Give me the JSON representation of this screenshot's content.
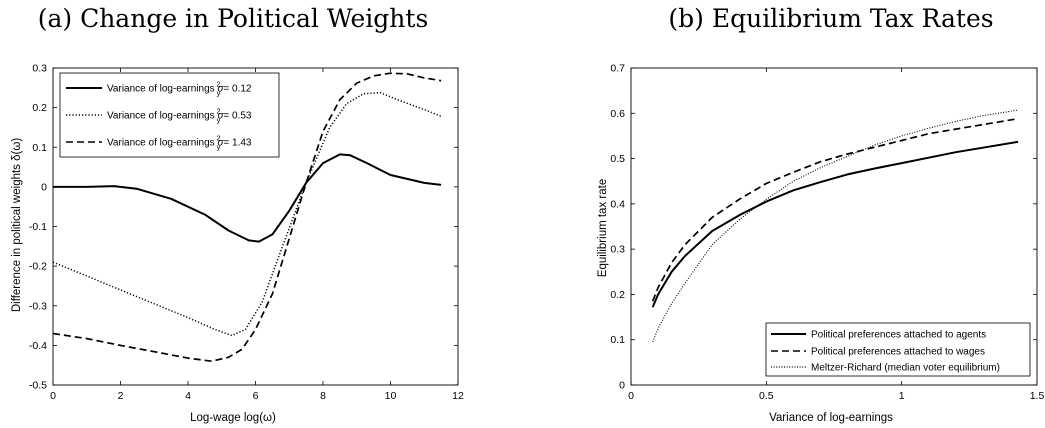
{
  "chart_data": [
    {
      "type": "line",
      "title": "(a) Change in Political Weights",
      "xlabel": "Log-wage log(ω)",
      "ylabel": "Difference in political weights δ(ω)",
      "xlim": [
        0,
        12
      ],
      "ylim": [
        -0.5,
        0.3
      ],
      "xticks": [
        "0",
        "2",
        "4",
        "6",
        "8",
        "10",
        "12"
      ],
      "yticks": [
        "-0.5",
        "-0.4",
        "-0.3",
        "-0.2",
        "-0.1",
        "0",
        "0.1",
        "0.2",
        "0.3"
      ],
      "legend_position": "top-left",
      "series": [
        {
          "name": "Variance of log-earnings σ²y = 0.12",
          "legend_prefix": "Variance of log-earnings ",
          "legend_value": "= 0.12",
          "style": "solid",
          "x": [
            0,
            1,
            1.8,
            2.5,
            3.5,
            4.5,
            5.2,
            5.8,
            6.1,
            6.5,
            7.0,
            7.5,
            8.0,
            8.5,
            8.8,
            9.3,
            10.0,
            11.0,
            11.5
          ],
          "y": [
            0,
            0,
            0.002,
            -0.005,
            -0.03,
            -0.07,
            -0.11,
            -0.135,
            -0.138,
            -0.12,
            -0.06,
            0.01,
            0.06,
            0.082,
            0.08,
            0.06,
            0.03,
            0.01,
            0.005
          ]
        },
        {
          "name": "Variance of log-earnings σ²y = 0.53",
          "legend_prefix": "Variance of log-earnings ",
          "legend_value": "= 0.53",
          "style": "dotted",
          "x": [
            0,
            1,
            2,
            3,
            4,
            4.8,
            5.3,
            5.7,
            6.2,
            6.8,
            7.5,
            8.2,
            8.7,
            9.2,
            9.7,
            10.2,
            11.0,
            11.5
          ],
          "y": [
            -0.19,
            -0.225,
            -0.26,
            -0.295,
            -0.33,
            -0.36,
            -0.375,
            -0.36,
            -0.29,
            -0.15,
            0.01,
            0.15,
            0.21,
            0.235,
            0.238,
            0.22,
            0.195,
            0.178
          ]
        },
        {
          "name": "Variance of log-earnings σ²y = 1.43",
          "legend_prefix": "Variance of log-earnings ",
          "legend_value": "= 1.43",
          "style": "dashed",
          "x": [
            0,
            1,
            2,
            3,
            4,
            4.7,
            5.2,
            5.6,
            6.0,
            6.5,
            7.0,
            7.5,
            8.0,
            8.5,
            9.0,
            9.5,
            10.0,
            10.5,
            11.0,
            11.5
          ],
          "y": [
            -0.37,
            -0.383,
            -0.4,
            -0.416,
            -0.432,
            -0.44,
            -0.43,
            -0.41,
            -0.36,
            -0.27,
            -0.13,
            0.01,
            0.14,
            0.22,
            0.262,
            0.28,
            0.287,
            0.285,
            0.275,
            0.268
          ]
        }
      ]
    },
    {
      "type": "line",
      "title": "(b) Equilibrium Tax Rates",
      "xlabel": "Variance of log-earnings",
      "ylabel": "Equilibrium tax rate",
      "xlim": [
        0,
        1.5
      ],
      "ylim": [
        0,
        0.7
      ],
      "xticks": [
        "0",
        "0.5",
        "1",
        "1.5"
      ],
      "yticks": [
        "0",
        "0.1",
        "0.2",
        "0.3",
        "0.4",
        "0.5",
        "0.6",
        "0.7"
      ],
      "legend_position": "bottom-right",
      "series": [
        {
          "name": "Political preferences attached to agents",
          "style": "solid",
          "x": [
            0.08,
            0.1,
            0.15,
            0.2,
            0.3,
            0.4,
            0.5,
            0.6,
            0.7,
            0.8,
            0.9,
            1.0,
            1.1,
            1.2,
            1.3,
            1.43
          ],
          "y": [
            0.172,
            0.2,
            0.25,
            0.285,
            0.34,
            0.375,
            0.405,
            0.43,
            0.448,
            0.465,
            0.478,
            0.49,
            0.502,
            0.514,
            0.524,
            0.537
          ]
        },
        {
          "name": "Political preferences attached to wages",
          "style": "dashed",
          "x": [
            0.08,
            0.1,
            0.15,
            0.2,
            0.3,
            0.4,
            0.5,
            0.6,
            0.7,
            0.8,
            0.9,
            1.0,
            1.1,
            1.2,
            1.3,
            1.43
          ],
          "y": [
            0.185,
            0.215,
            0.27,
            0.31,
            0.37,
            0.41,
            0.445,
            0.47,
            0.493,
            0.51,
            0.525,
            0.54,
            0.555,
            0.565,
            0.575,
            0.588
          ]
        },
        {
          "name": "Meltzer-Richard (median voter equilibrium)",
          "style": "dotted",
          "x": [
            0.08,
            0.1,
            0.15,
            0.2,
            0.3,
            0.4,
            0.5,
            0.6,
            0.7,
            0.8,
            0.9,
            1.0,
            1.1,
            1.2,
            1.3,
            1.43
          ],
          "y": [
            0.095,
            0.125,
            0.18,
            0.225,
            0.31,
            0.365,
            0.41,
            0.45,
            0.48,
            0.505,
            0.53,
            0.55,
            0.567,
            0.582,
            0.595,
            0.607
          ]
        }
      ]
    }
  ]
}
